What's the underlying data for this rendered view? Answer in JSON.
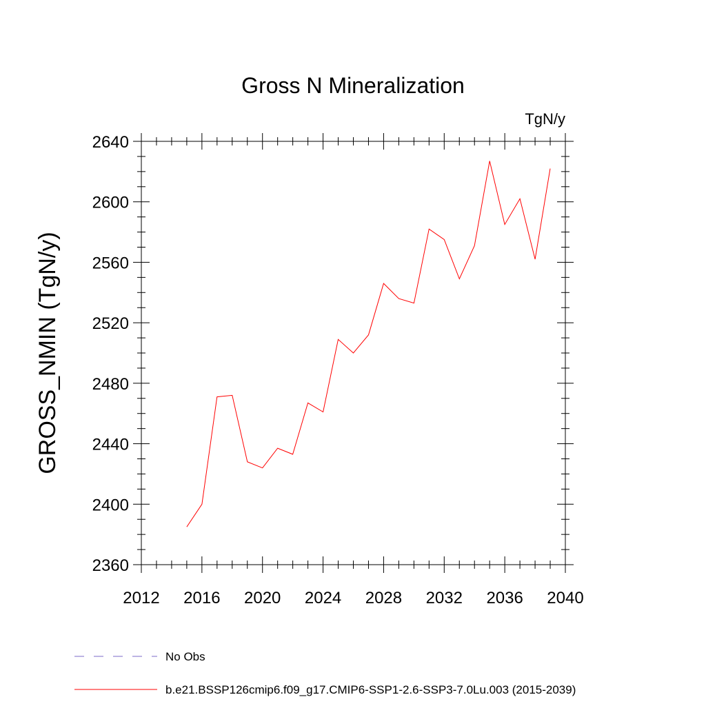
{
  "chart_data": {
    "type": "line",
    "title": "Gross N Mineralization",
    "units_label": "TgN/y",
    "ylabel": "GROSS_NMIN  (TgN/y)",
    "xlabel": "",
    "xlim": [
      2012,
      2040
    ],
    "ylim": [
      2360,
      2640
    ],
    "x_ticks": [
      "2012",
      "2016",
      "2020",
      "2024",
      "2028",
      "2032",
      "2036",
      "2040"
    ],
    "y_ticks": [
      "2360",
      "2400",
      "2440",
      "2480",
      "2520",
      "2560",
      "2600",
      "2640"
    ],
    "grid": false,
    "legend_placement": "bottom",
    "legend": [
      {
        "label": "No Obs",
        "style": "dashed",
        "color": "#7b68c8"
      },
      {
        "label": "b.e21.BSSP126cmip6.f09_g17.CMIP6-SSP1-2.6-SSP3-7.0Lu.003 (2015-2039)",
        "style": "solid",
        "color": "#ff0000"
      }
    ],
    "series": [
      {
        "name": "b.e21.BSSP126cmip6.f09_g17.CMIP6-SSP1-2.6-SSP3-7.0Lu.003 (2015-2039)",
        "color": "#ff0000",
        "x": [
          2015,
          2016,
          2017,
          2018,
          2019,
          2020,
          2021,
          2022,
          2023,
          2024,
          2025,
          2026,
          2027,
          2028,
          2029,
          2030,
          2031,
          2032,
          2033,
          2034,
          2035,
          2036,
          2037,
          2038,
          2039
        ],
        "y": [
          2385,
          2400,
          2471,
          2472,
          2428,
          2424,
          2437,
          2433,
          2467,
          2461,
          2509,
          2500,
          2512,
          2546,
          2536,
          2533,
          2582,
          2575,
          2549,
          2571,
          2627,
          2585,
          2602,
          2562,
          2622
        ]
      }
    ]
  }
}
